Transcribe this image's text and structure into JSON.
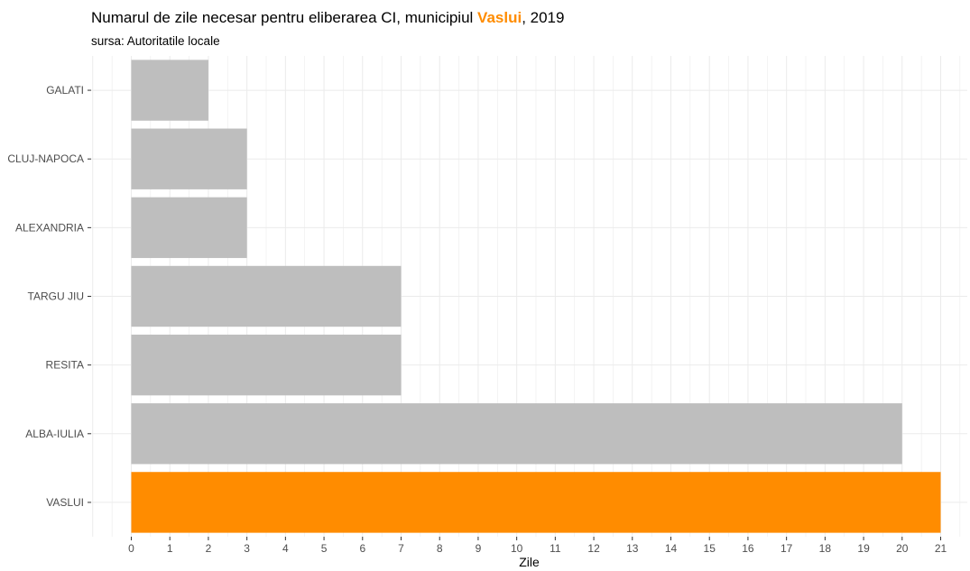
{
  "chart_data": {
    "type": "bar",
    "orientation": "horizontal",
    "title": {
      "prefix": "Numarul de zile necesar pentru eliberarea CI, municipiul ",
      "highlight": "Vaslui",
      "suffix": ", 2019"
    },
    "subtitle": "sursa: Autoritatile locale",
    "xlabel": "Zile",
    "ylabel": "",
    "xlim": [
      0,
      21
    ],
    "x_ticks": [
      0,
      1,
      2,
      3,
      4,
      5,
      6,
      7,
      8,
      9,
      10,
      11,
      12,
      13,
      14,
      15,
      16,
      17,
      18,
      19,
      20,
      21
    ],
    "categories": [
      "GALATI",
      "CLUJ-NAPOCA",
      "ALEXANDRIA",
      "TARGU JIU",
      "RESITA",
      "ALBA-IULIA",
      "VASLUI"
    ],
    "values": [
      2,
      3,
      3,
      7,
      7,
      20,
      21
    ],
    "highlight_category": "VASLUI",
    "colors": {
      "default": "#bebebe",
      "highlight": "#ff8c00",
      "grid": "#ebebeb"
    },
    "grid": true,
    "legend": "none"
  }
}
